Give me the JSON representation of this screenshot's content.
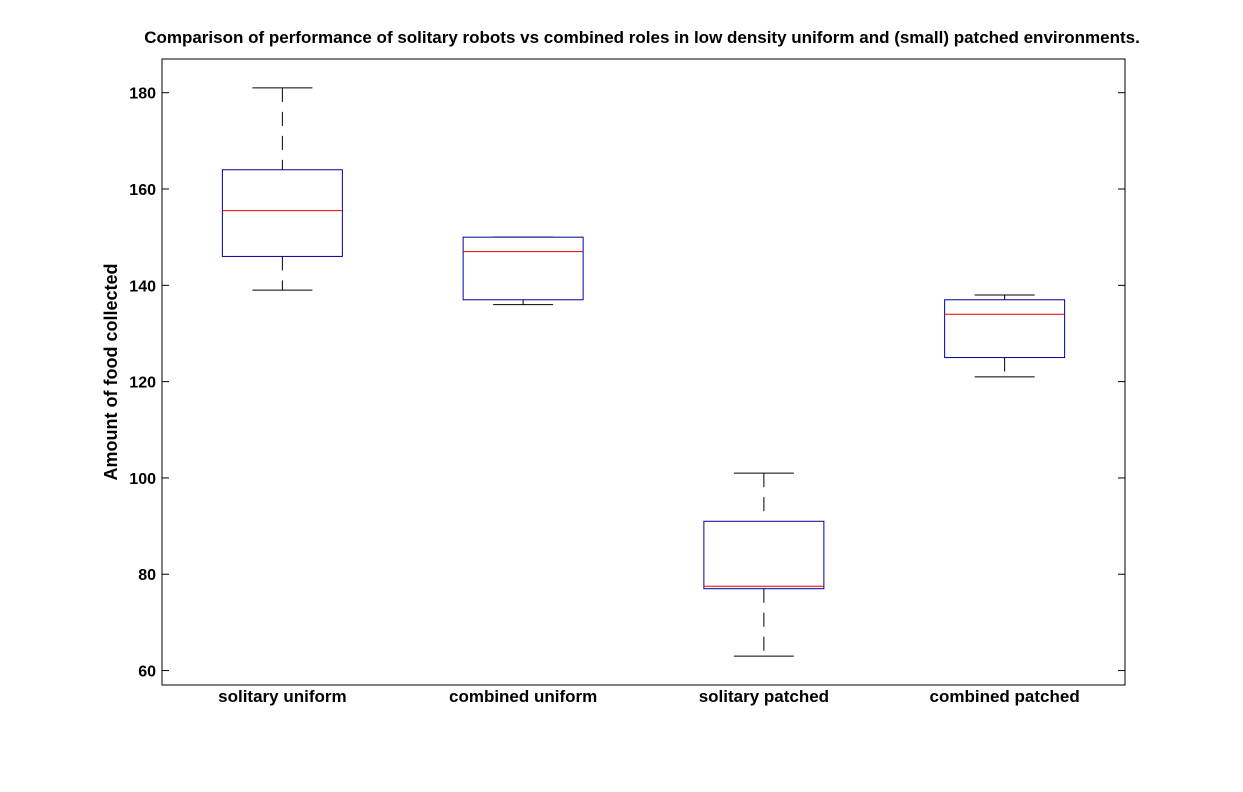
{
  "chart_data": {
    "type": "boxplot",
    "title": "Comparison of performance of solitary robots vs combined roles in low density uniform and (small) patched environments.",
    "xlabel": "",
    "ylabel": "Amount of food collected",
    "ylim": [
      57,
      187
    ],
    "yticks": [
      60,
      80,
      100,
      120,
      140,
      160,
      180
    ],
    "categories": [
      "solitary uniform",
      "combined uniform",
      "solitary patched",
      "combined patched"
    ],
    "boxes": [
      {
        "name": "solitary uniform",
        "whisker_low": 139,
        "q1": 146,
        "median": 155.5,
        "q3": 164,
        "whisker_high": 181
      },
      {
        "name": "combined uniform",
        "whisker_low": 136,
        "q1": 137,
        "median": 147,
        "q3": 150,
        "whisker_high": 150
      },
      {
        "name": "solitary patched",
        "whisker_low": 63,
        "q1": 77,
        "median": 77.5,
        "q3": 91,
        "whisker_high": 101
      },
      {
        "name": "combined patched",
        "whisker_low": 121,
        "q1": 125,
        "median": 134,
        "q3": 137,
        "whisker_high": 138
      }
    ],
    "colors": {
      "box": "#0000a0",
      "median": "#e00000",
      "whisker": "#000000",
      "axes": "#000000"
    },
    "grid": false
  }
}
